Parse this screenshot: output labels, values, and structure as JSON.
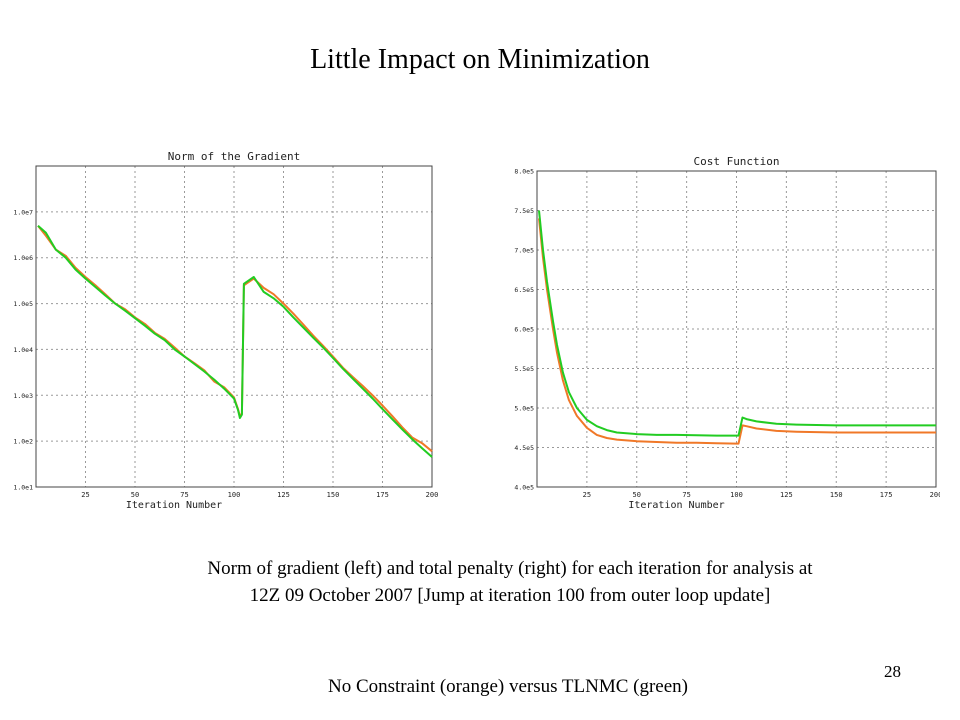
{
  "slide": {
    "title": "Little Impact on Minimization",
    "caption_line1": "Norm of gradient (left) and total penalty (right) for each iteration for analysis at",
    "caption_line2": "12Z 09 October 2007 [Jump at iteration 100 from outer loop update]",
    "legend_note": "No Constraint (orange) versus TLNMC (green)",
    "page_number": "28"
  },
  "colors": {
    "orange": "#f07828",
    "green": "#22cc22",
    "grid": "#9a9a9a"
  },
  "chart_data": [
    {
      "type": "line",
      "title": "Norm of the Gradient",
      "xlabel": "Iteration Number",
      "ylabel": "",
      "xlim": [
        0,
        200
      ],
      "ylim": [
        10,
        100000000
      ],
      "yscale": "log",
      "x_ticks": [
        25,
        50,
        75,
        100,
        125,
        150,
        175,
        200
      ],
      "y_tick_labels": [
        "1.0e1",
        "1.0e2",
        "1.0e3",
        "1.0e4",
        "1.0e5",
        "1.0e6",
        "1.0e7"
      ],
      "y_tick_values": [
        10,
        100,
        1000,
        10000,
        100000,
        1000000,
        10000000
      ],
      "grid": true,
      "series": [
        {
          "color": "#f07828",
          "x": [
            1,
            5,
            10,
            15,
            20,
            25,
            30,
            35,
            40,
            45,
            50,
            55,
            60,
            65,
            70,
            75,
            80,
            85,
            90,
            95,
            100,
            102,
            103,
            104,
            105,
            110,
            115,
            120,
            125,
            130,
            135,
            140,
            145,
            150,
            155,
            160,
            165,
            170,
            175,
            180,
            185,
            190,
            195,
            200
          ],
          "y": [
            5000000,
            3000000,
            1500000,
            1100000,
            600000,
            380000,
            250000,
            160000,
            100000,
            75000,
            50000,
            36000,
            23000,
            17000,
            11000,
            7000,
            5000,
            3500,
            2000,
            1500,
            900,
            500,
            350,
            400,
            250000,
            350000,
            220000,
            160000,
            100000,
            60000,
            35000,
            20000,
            12000,
            7000,
            4000,
            2500,
            1600,
            1000,
            600,
            350,
            200,
            120,
            90,
            60
          ]
        },
        {
          "color": "#22cc22",
          "x": [
            1,
            5,
            10,
            15,
            20,
            25,
            30,
            35,
            40,
            45,
            50,
            55,
            60,
            65,
            70,
            75,
            80,
            85,
            90,
            95,
            100,
            102,
            103,
            104,
            105,
            110,
            115,
            120,
            125,
            130,
            135,
            140,
            145,
            150,
            155,
            160,
            165,
            170,
            175,
            180,
            185,
            190,
            195,
            200
          ],
          "y": [
            5000000,
            3500000,
            1500000,
            1000000,
            550000,
            350000,
            230000,
            150000,
            100000,
            70000,
            48000,
            33000,
            22000,
            16000,
            10000,
            7000,
            4800,
            3300,
            2200,
            1400,
            850,
            480,
            320,
            380,
            270000,
            380000,
            180000,
            130000,
            85000,
            50000,
            30000,
            18000,
            11000,
            6500,
            3800,
            2300,
            1400,
            850,
            500,
            300,
            180,
            110,
            70,
            45
          ]
        }
      ]
    },
    {
      "type": "line",
      "title": "Cost Function",
      "xlabel": "Iteration Number",
      "ylabel": "",
      "xlim": [
        0,
        200
      ],
      "ylim": [
        400000,
        800000
      ],
      "x_ticks": [
        25,
        50,
        75,
        100,
        125,
        150,
        175,
        200
      ],
      "y_tick_labels": [
        "4.0e5",
        "4.5e5",
        "5.0e5",
        "5.5e5",
        "6.0e5",
        "6.5e5",
        "7.0e5",
        "7.5e5",
        "8.0e5"
      ],
      "y_tick_values": [
        400000,
        450000,
        500000,
        550000,
        600000,
        650000,
        700000,
        750000,
        800000
      ],
      "grid": true,
      "series": [
        {
          "color": "#f07828",
          "x": [
            1,
            3,
            5,
            8,
            10,
            13,
            16,
            20,
            25,
            30,
            35,
            40,
            50,
            60,
            70,
            80,
            90,
            100,
            101,
            103,
            105,
            110,
            120,
            130,
            150,
            175,
            200
          ],
          "y": [
            740000,
            690000,
            650000,
            600000,
            570000,
            535000,
            510000,
            490000,
            475000,
            466000,
            462000,
            460000,
            458000,
            457000,
            456000,
            456000,
            455500,
            455000,
            455000,
            478000,
            477000,
            474000,
            471000,
            470000,
            469000,
            469000,
            469000
          ]
        },
        {
          "color": "#22cc22",
          "x": [
            1,
            3,
            5,
            8,
            10,
            13,
            16,
            20,
            25,
            30,
            35,
            40,
            50,
            60,
            70,
            80,
            90,
            100,
            101,
            103,
            105,
            110,
            120,
            130,
            150,
            175,
            200
          ],
          "y": [
            750000,
            700000,
            660000,
            610000,
            580000,
            545000,
            520000,
            500000,
            485000,
            477000,
            472000,
            469000,
            467000,
            466000,
            466000,
            465500,
            465000,
            465000,
            465000,
            488000,
            486000,
            483000,
            480000,
            479000,
            478000,
            478000,
            478000
          ]
        }
      ]
    }
  ]
}
